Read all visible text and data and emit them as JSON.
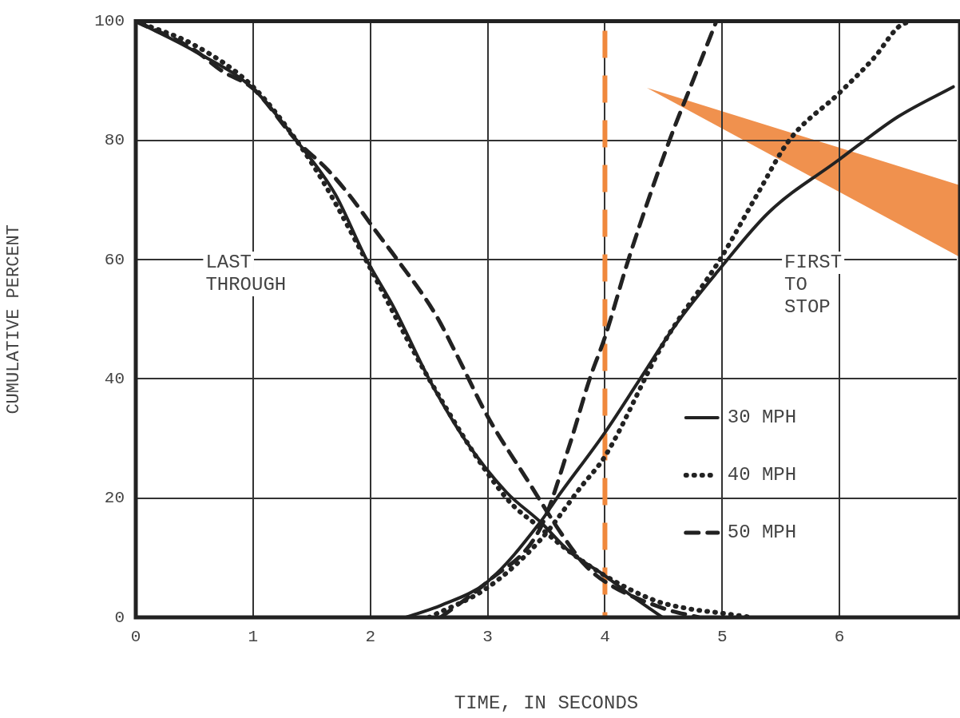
{
  "chart_data": {
    "type": "line",
    "xlabel": "TIME, IN SECONDS",
    "ylabel": "CUMULATIVE PERCENT",
    "xlim": [
      0,
      7
    ],
    "xticks": [
      0,
      1,
      2,
      3,
      4,
      5,
      6
    ],
    "ylim": [
      0,
      100
    ],
    "yticks": [
      0,
      20,
      40,
      60,
      80,
      100
    ],
    "grid": true,
    "legend": "bottom right",
    "marker": "none",
    "series": [
      {
        "name": "30 MPH",
        "color": "#222222",
        "line_style": "solid",
        "x": [
          0,
          0.5,
          1,
          1.37,
          1.7,
          1.96,
          2.2,
          2.5,
          2.8,
          3.16,
          3.45,
          3.7,
          4,
          4.2,
          4.49
        ],
        "values": [
          100,
          95,
          88.7,
          80,
          71,
          60.3,
          52,
          40,
          30,
          21,
          16,
          11,
          7,
          4,
          0
        ]
      },
      {
        "name": "40 MPH",
        "color": "#222222",
        "line_style": "dotted",
        "x": [
          0,
          0.5,
          1,
          1.37,
          1.6,
          1.96,
          2.5,
          3.16,
          3.45,
          3.7,
          4,
          4.43,
          4.7,
          5,
          5.25
        ],
        "values": [
          100,
          96,
          89,
          80,
          73,
          60,
          40,
          20,
          15,
          11,
          7,
          2.8,
          1.5,
          0.7,
          0
        ]
      },
      {
        "name": "50 MPH",
        "color": "#222222",
        "line_style": "dashed",
        "x": [
          0,
          0.49,
          0.74,
          1,
          1.37,
          1.64,
          1.83,
          2.05,
          2.23,
          2.55,
          2.73,
          3,
          3.34,
          3.63,
          3.82,
          4,
          4.5,
          4.8
        ],
        "values": [
          100,
          95.3,
          91.6,
          88.7,
          80,
          75,
          70.6,
          64.7,
          60,
          51,
          44.3,
          33.7,
          23,
          14,
          9,
          6,
          1.5,
          0
        ]
      },
      {
        "color": "#222222",
        "line_style": "solid",
        "x": [
          2.3,
          2.6,
          3,
          3.45,
          3.59,
          4,
          4.3,
          4.6,
          4.96,
          5.4,
          5.99,
          6.18,
          6.5,
          6.97
        ],
        "values": [
          0,
          2,
          6,
          16,
          20,
          31,
          40,
          49,
          58,
          68,
          76.7,
          79.5,
          84,
          89
        ]
      },
      {
        "color": "#222222",
        "line_style": "dotted",
        "x": [
          2.5,
          3,
          3.45,
          3.8,
          4,
          4.5,
          4.98,
          5.3,
          5.57,
          6,
          6.3,
          6.5,
          6.6
        ],
        "values": [
          0,
          5,
          13,
          22,
          27,
          46,
          60,
          71,
          80,
          88,
          94,
          99,
          100
        ]
      },
      {
        "color": "#222222",
        "line_style": "dashed",
        "x": [
          2.6,
          3,
          3.45,
          3.7,
          3.87,
          4,
          4.2,
          4.55,
          4.75,
          4.95
        ],
        "values": [
          0,
          6,
          15,
          29,
          40,
          47,
          60,
          80,
          90,
          100
        ]
      }
    ],
    "ref_lines": [
      {
        "axis": "x",
        "value": 4,
        "color": "#f0883c",
        "line_style": "dashed"
      }
    ],
    "annotations": [
      "LAST THROUGH",
      "FIRST TO STOP"
    ]
  }
}
